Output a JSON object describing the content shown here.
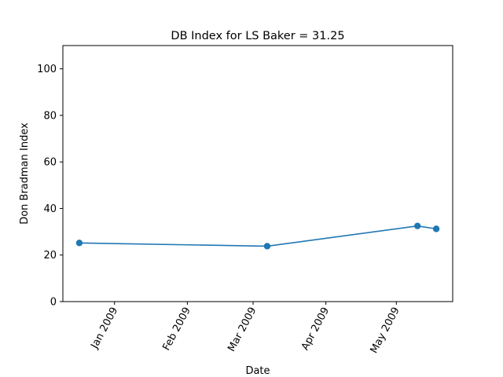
{
  "chart_data": {
    "type": "line",
    "title": "DB Index for LS Baker = 31.25",
    "xlabel": "Date",
    "ylabel": "Don Bradman Index",
    "ylim": [
      0,
      110
    ],
    "yticks": [
      0,
      20,
      40,
      60,
      80,
      100
    ],
    "xlim_days": [
      -22,
      144
    ],
    "xticks": [
      {
        "day": 0,
        "label": "Jan 2009"
      },
      {
        "day": 31,
        "label": "Feb 2009"
      },
      {
        "day": 59,
        "label": "Mar 2009"
      },
      {
        "day": 90,
        "label": "Apr 2009"
      },
      {
        "day": 120,
        "label": "May 2009"
      }
    ],
    "series": [
      {
        "name": "DB Index",
        "color": "#1f77b4",
        "points": [
          {
            "day": -15,
            "value": 25.2
          },
          {
            "day": 65,
            "value": 23.8
          },
          {
            "day": 129,
            "value": 32.5
          },
          {
            "day": 137,
            "value": 31.25
          }
        ]
      }
    ],
    "grid": false,
    "legend": "none"
  }
}
